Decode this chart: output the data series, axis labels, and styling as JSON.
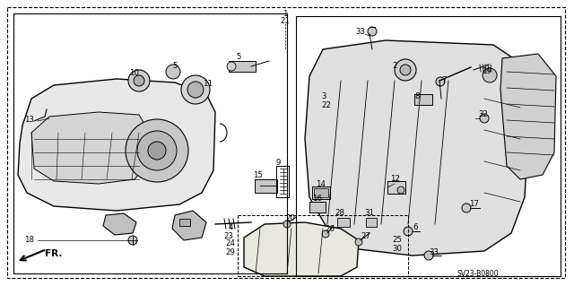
{
  "background_color": "#ffffff",
  "diagram_code": "SV23-B0800",
  "line_color": "#000000",
  "text_color": "#000000"
}
